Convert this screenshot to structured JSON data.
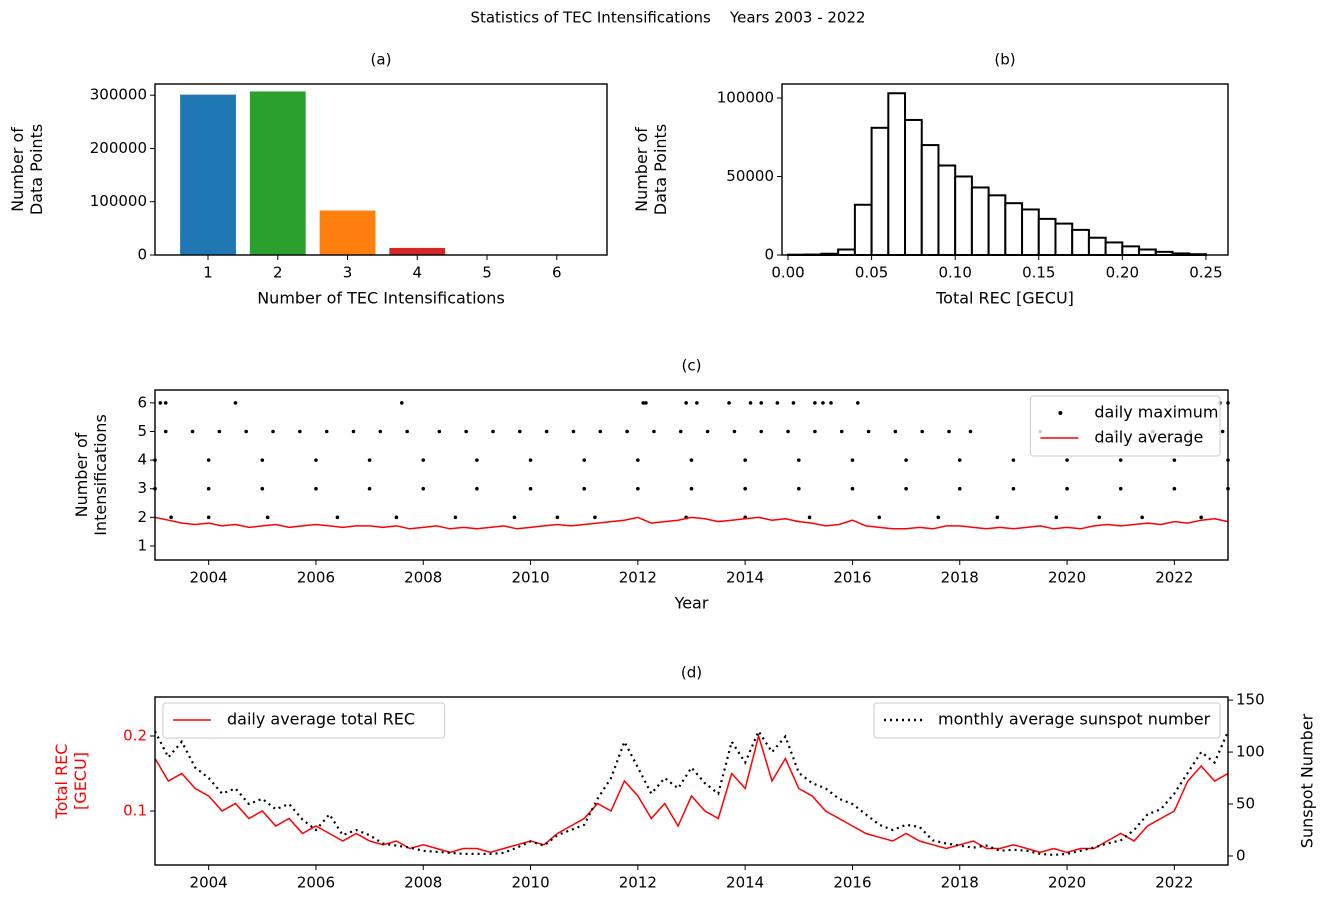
{
  "title": "Statistics of TEC Intensifications    Years 2003 - 2022",
  "chart_data": [
    {
      "type": "bar",
      "title": "(a)",
      "xlabel": "Number of TEC Intensifications",
      "ylabel": [
        "Number of",
        "Data Points"
      ],
      "categories": [
        1,
        2,
        3,
        4,
        5,
        6
      ],
      "values": [
        301000,
        307000,
        83500,
        13300,
        500,
        100
      ],
      "colors": [
        "#1f77b4",
        "#2ca02c",
        "#ff7f0e",
        "#d62728",
        "#9467bd",
        "#8c564b"
      ],
      "xlim": [
        0.24,
        6.72
      ],
      "xticks": [
        1,
        2,
        3,
        4,
        5,
        6
      ],
      "ylim": [
        0,
        321000
      ],
      "yticks": [
        0,
        100000,
        200000,
        300000
      ]
    },
    {
      "type": "histogram",
      "title": "(b)",
      "xlabel": "Total REC [GECU]",
      "ylabel": [
        "Number of",
        "Data Points"
      ],
      "bins": [
        0,
        0.01,
        0.02,
        0.03,
        0.04,
        0.05,
        0.06,
        0.07,
        0.08,
        0.09,
        0.1,
        0.11,
        0.12,
        0.13,
        0.14,
        0.15,
        0.16,
        0.17,
        0.18,
        0.19,
        0.2,
        0.21,
        0.22,
        0.23,
        0.24,
        0.25
      ],
      "values": [
        200,
        300,
        800,
        3500,
        32000,
        81000,
        103000,
        86000,
        70000,
        57000,
        50000,
        43000,
        38000,
        33000,
        29000,
        23000,
        20000,
        16000,
        11000,
        8000,
        5500,
        3500,
        2000,
        1000,
        500
      ],
      "color": "#000000",
      "xlim": [
        -0.0036,
        0.2632
      ],
      "xticks": [
        {
          "value": 0,
          "label": "0.00"
        },
        0.05,
        {
          "value": 0.1,
          "label": "0.10"
        },
        0.15,
        {
          "value": 0.2,
          "label": "0.20"
        },
        0.25
      ],
      "ylim": [
        0,
        108900
      ],
      "yticks": [
        0,
        50000,
        100000
      ]
    },
    {
      "type": "scatter",
      "title": "(c)",
      "xlabel": "Year",
      "ylabel": [
        "Number of",
        "Intensifications"
      ],
      "legend": "upper right",
      "xlim": [
        2003,
        2023
      ],
      "xticks": [
        2004,
        2006,
        2008,
        2010,
        2012,
        2014,
        2016,
        2018,
        2020,
        2022
      ],
      "ylim": [
        0.51,
        6.45
      ],
      "yticks": [
        1,
        2,
        3,
        4,
        5,
        6
      ],
      "series": [
        {
          "name": "daily maximum",
          "color": "#000000",
          "mode": "markers",
          "x": [
            2003.1,
            2003.2,
            2004.5,
            2007.6,
            2012.1,
            2012.15,
            2012.9,
            2013.1,
            2013.7,
            2014.1,
            2014.3,
            2014.6,
            2014.9,
            2015.3,
            2015.45,
            2015.6,
            2016.1,
            2022.85,
            2023.0,
            2003.2,
            2003.7,
            2004.2,
            2004.7,
            2005.2,
            2005.7,
            2006.2,
            2006.7,
            2007.2,
            2007.7,
            2008.3,
            2008.8,
            2009.3,
            2009.8,
            2010.3,
            2010.8,
            2011.3,
            2011.8,
            2012.3,
            2012.8,
            2013.3,
            2013.8,
            2014.3,
            2014.8,
            2015.3,
            2015.8,
            2016.3,
            2016.8,
            2017.3,
            2017.8,
            2018.2,
            2019.5,
            2020.9,
            2021.6,
            2022.3,
            2022.9,
            2003,
            2004,
            2005,
            2006,
            2007,
            2008,
            2009,
            2010,
            2011,
            2012,
            2013,
            2014,
            2015,
            2016,
            2017,
            2018,
            2019,
            2020,
            2021,
            2022,
            2023,
            2003,
            2004,
            2005,
            2006,
            2007,
            2008,
            2009,
            2010,
            2011,
            2012,
            2013,
            2014,
            2015,
            2016,
            2017,
            2018,
            2019,
            2020,
            2021,
            2022,
            2023,
            2003.3,
            2004.0,
            2005.1,
            2006.4,
            2007.5,
            2008.6,
            2009.7,
            2010.5,
            2011.2,
            2012.9,
            2014.0,
            2015.2,
            2016.5,
            2017.6,
            2018.7,
            2019.8,
            2020.6,
            2021.4,
            2022.5
          ],
          "values": [
            6,
            6,
            6,
            6,
            6,
            6,
            6,
            6,
            6,
            6,
            6,
            6,
            6,
            6,
            6,
            6,
            6,
            6,
            6,
            5,
            5,
            5,
            5,
            5,
            5,
            5,
            5,
            5,
            5,
            5,
            5,
            5,
            5,
            5,
            5,
            5,
            5,
            5,
            5,
            5,
            5,
            5,
            5,
            5,
            5,
            5,
            5,
            5,
            5,
            5,
            5,
            5,
            5,
            5,
            5,
            4,
            4,
            4,
            4,
            4,
            4,
            4,
            4,
            4,
            4,
            4,
            4,
            4,
            4,
            4,
            4,
            4,
            4,
            4,
            4,
            4,
            3,
            3,
            3,
            3,
            3,
            3,
            3,
            3,
            3,
            3,
            3,
            3,
            3,
            3,
            3,
            3,
            3,
            3,
            3,
            3,
            3,
            2,
            2,
            2,
            2,
            2,
            2,
            2,
            2,
            2,
            2,
            2,
            2,
            2,
            2,
            2,
            2,
            2,
            2,
            2
          ]
        },
        {
          "name": "daily average",
          "color": "#ff0000",
          "mode": "line",
          "x": [
            2003,
            2003.25,
            2003.5,
            2003.75,
            2004,
            2004.25,
            2004.5,
            2004.75,
            2005,
            2005.25,
            2005.5,
            2005.75,
            2006,
            2006.25,
            2006.5,
            2006.75,
            2007,
            2007.25,
            2007.5,
            2007.75,
            2008,
            2008.25,
            2008.5,
            2008.75,
            2009,
            2009.25,
            2009.5,
            2009.75,
            2010,
            2010.25,
            2010.5,
            2010.75,
            2011,
            2011.25,
            2011.5,
            2011.75,
            2012,
            2012.25,
            2012.5,
            2012.75,
            2013,
            2013.25,
            2013.5,
            2013.75,
            2014,
            2014.25,
            2014.5,
            2014.75,
            2015,
            2015.25,
            2015.5,
            2015.75,
            2016,
            2016.25,
            2016.5,
            2016.75,
            2017,
            2017.25,
            2017.5,
            2017.75,
            2018,
            2018.25,
            2018.5,
            2018.75,
            2019,
            2019.25,
            2019.5,
            2019.75,
            2020,
            2020.25,
            2020.5,
            2020.75,
            2021,
            2021.25,
            2021.5,
            2021.75,
            2022,
            2022.25,
            2022.5,
            2022.75,
            2023
          ],
          "values": [
            2.0,
            1.9,
            1.8,
            1.75,
            1.8,
            1.7,
            1.75,
            1.65,
            1.7,
            1.75,
            1.65,
            1.7,
            1.75,
            1.7,
            1.65,
            1.7,
            1.7,
            1.65,
            1.7,
            1.6,
            1.65,
            1.7,
            1.6,
            1.65,
            1.6,
            1.65,
            1.7,
            1.6,
            1.65,
            1.7,
            1.75,
            1.7,
            1.75,
            1.8,
            1.85,
            1.9,
            2.0,
            1.8,
            1.85,
            1.9,
            2.0,
            1.95,
            1.85,
            1.9,
            1.95,
            2.0,
            1.9,
            1.95,
            1.85,
            1.8,
            1.7,
            1.75,
            1.9,
            1.7,
            1.65,
            1.6,
            1.6,
            1.65,
            1.6,
            1.7,
            1.7,
            1.65,
            1.6,
            1.65,
            1.6,
            1.65,
            1.7,
            1.6,
            1.65,
            1.6,
            1.7,
            1.75,
            1.7,
            1.75,
            1.8,
            1.75,
            1.85,
            1.8,
            1.9,
            1.95,
            1.85
          ]
        }
      ]
    },
    {
      "type": "line",
      "title": "(d)",
      "ylabel": [
        "Total REC",
        "[GECU]"
      ],
      "y_color": "#ff0000",
      "y2label": "Sunspot Number",
      "xlim": [
        2003,
        2023
      ],
      "xticks": [
        2004,
        2006,
        2008,
        2010,
        2012,
        2014,
        2016,
        2018,
        2020,
        2022
      ],
      "ylim": [
        0.028,
        0.252
      ],
      "yticks": [
        0.1,
        0.2
      ],
      "y2lim": [
        -8.7,
        153
      ],
      "y2ticks": [
        0,
        50,
        100,
        150
      ],
      "x": [
        2003,
        2003.25,
        2003.5,
        2003.75,
        2004,
        2004.25,
        2004.5,
        2004.75,
        2005,
        2005.25,
        2005.5,
        2005.75,
        2006,
        2006.25,
        2006.5,
        2006.75,
        2007,
        2007.25,
        2007.5,
        2007.75,
        2008,
        2008.25,
        2008.5,
        2008.75,
        2009,
        2009.25,
        2009.5,
        2009.75,
        2010,
        2010.25,
        2010.5,
        2010.75,
        2011,
        2011.25,
        2011.5,
        2011.75,
        2012,
        2012.25,
        2012.5,
        2012.75,
        2013,
        2013.25,
        2013.5,
        2013.75,
        2014,
        2014.25,
        2014.5,
        2014.75,
        2015,
        2015.25,
        2015.5,
        2015.75,
        2016,
        2016.25,
        2016.5,
        2016.75,
        2017,
        2017.25,
        2017.5,
        2017.75,
        2018,
        2018.25,
        2018.5,
        2018.75,
        2019,
        2019.25,
        2019.5,
        2019.75,
        2020,
        2020.25,
        2020.5,
        2020.75,
        2021,
        2021.25,
        2021.5,
        2021.75,
        2022,
        2022.25,
        2022.5,
        2022.75,
        2023
      ],
      "series": [
        {
          "name": "daily average total REC",
          "color": "#ff0000",
          "dash": "solid",
          "legend": "upper left",
          "values": [
            0.17,
            0.14,
            0.15,
            0.13,
            0.12,
            0.1,
            0.11,
            0.09,
            0.1,
            0.08,
            0.09,
            0.07,
            0.08,
            0.07,
            0.06,
            0.07,
            0.06,
            0.055,
            0.06,
            0.05,
            0.055,
            0.05,
            0.045,
            0.05,
            0.05,
            0.045,
            0.05,
            0.055,
            0.06,
            0.055,
            0.07,
            0.08,
            0.09,
            0.11,
            0.1,
            0.14,
            0.12,
            0.09,
            0.11,
            0.08,
            0.12,
            0.1,
            0.09,
            0.15,
            0.13,
            0.2,
            0.14,
            0.17,
            0.13,
            0.12,
            0.1,
            0.09,
            0.08,
            0.07,
            0.065,
            0.06,
            0.07,
            0.06,
            0.055,
            0.05,
            0.055,
            0.06,
            0.05,
            0.05,
            0.055,
            0.05,
            0.045,
            0.05,
            0.045,
            0.05,
            0.05,
            0.06,
            0.07,
            0.06,
            0.08,
            0.09,
            0.1,
            0.14,
            0.16,
            0.14,
            0.15
          ]
        },
        {
          "name": "monthly average sunspot number",
          "color": "#000000",
          "dash": "dotted",
          "axis": "y2",
          "legend": "upper right",
          "values": [
            120,
            95,
            110,
            85,
            75,
            60,
            65,
            50,
            55,
            45,
            50,
            35,
            25,
            40,
            20,
            25,
            20,
            12,
            10,
            8,
            5,
            4,
            3,
            2,
            2,
            2,
            3,
            8,
            14,
            10,
            20,
            25,
            30,
            55,
            75,
            110,
            85,
            60,
            75,
            65,
            85,
            70,
            60,
            110,
            90,
            120,
            100,
            115,
            80,
            70,
            65,
            55,
            50,
            40,
            30,
            25,
            30,
            28,
            15,
            12,
            10,
            8,
            10,
            5,
            6,
            5,
            2,
            1,
            2,
            5,
            8,
            12,
            15,
            25,
            40,
            45,
            60,
            80,
            100,
            90,
            120
          ]
        }
      ]
    }
  ]
}
